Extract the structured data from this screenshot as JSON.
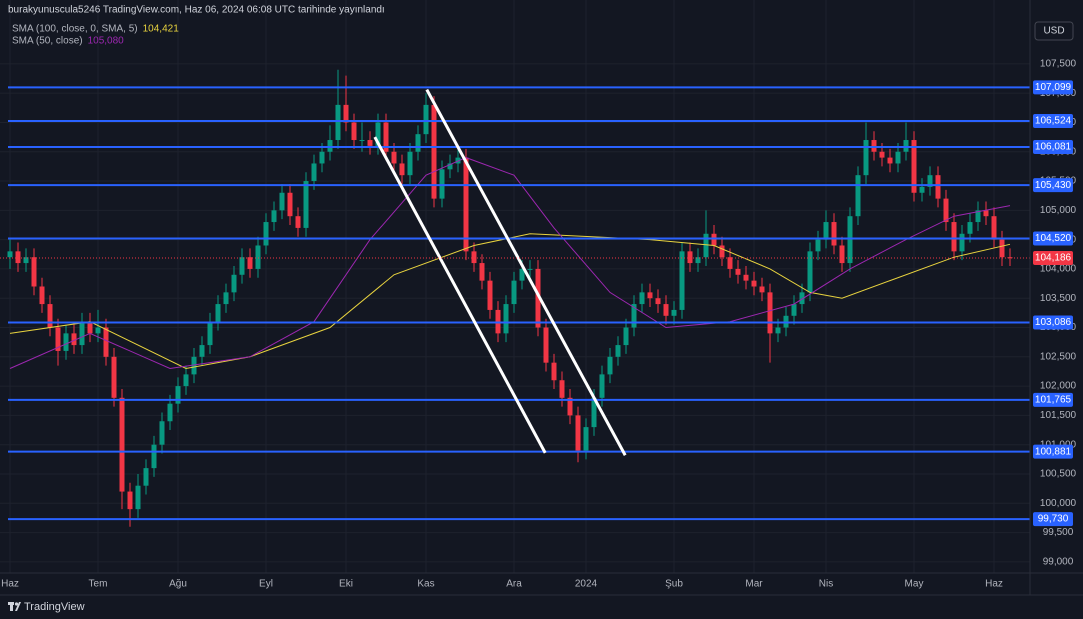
{
  "chart_data": {
    "type": "candlestick",
    "title": "burakyunuscula5246 TradingView.com, Haz 06, 2024 06:08 UTC tarihinde yayınlandı",
    "currency": "USD",
    "brand": "TradingView",
    "up_color": "#089981",
    "down_color": "#f23645",
    "grid": true,
    "ylim": [
      98.81,
      108.59
    ],
    "yticks": [
      {
        "value": 99,
        "label": "99,000"
      },
      {
        "value": 99.5,
        "label": "99,500"
      },
      {
        "value": 100,
        "label": "100,000"
      },
      {
        "value": 100.5,
        "label": "100,500"
      },
      {
        "value": 101,
        "label": "101,000"
      },
      {
        "value": 101.5,
        "label": "101,500"
      },
      {
        "value": 102,
        "label": "102,000"
      },
      {
        "value": 102.5,
        "label": "102,500"
      },
      {
        "value": 103,
        "label": "103,000"
      },
      {
        "value": 103.5,
        "label": "103,500"
      },
      {
        "value": 104,
        "label": "104,000"
      },
      {
        "value": 104.5,
        "label": "104,500"
      },
      {
        "value": 105,
        "label": "105,000"
      },
      {
        "value": 105.5,
        "label": "105,500"
      },
      {
        "value": 106,
        "label": "106,000"
      },
      {
        "value": 106.5,
        "label": "106,500"
      },
      {
        "value": 107,
        "label": "107,000"
      },
      {
        "value": 107.5,
        "label": "107,500"
      }
    ],
    "categories": [
      "Haz",
      null,
      null,
      null,
      null,
      null,
      null,
      null,
      null,
      null,
      null,
      "Tem",
      null,
      null,
      null,
      null,
      null,
      null,
      null,
      null,
      null,
      "Ağu",
      null,
      null,
      null,
      null,
      null,
      null,
      null,
      null,
      null,
      null,
      "Eyl",
      null,
      null,
      null,
      null,
      null,
      null,
      null,
      null,
      null,
      "Eki",
      null,
      null,
      null,
      null,
      null,
      null,
      null,
      null,
      null,
      "Kas",
      null,
      null,
      null,
      null,
      null,
      null,
      null,
      null,
      null,
      null,
      "Ara",
      null,
      null,
      null,
      null,
      null,
      null,
      null,
      null,
      "2024",
      null,
      null,
      null,
      null,
      null,
      null,
      null,
      null,
      null,
      null,
      "Şub",
      null,
      null,
      null,
      null,
      null,
      null,
      null,
      null,
      null,
      "Mar",
      null,
      null,
      null,
      null,
      null,
      null,
      null,
      null,
      "Nis",
      null,
      null,
      null,
      null,
      null,
      null,
      null,
      null,
      null,
      null,
      "May",
      null,
      null,
      null,
      null,
      null,
      null,
      null,
      null,
      null,
      "Haz",
      null,
      null
    ],
    "candles": [
      [
        104.2,
        104.5,
        104.0,
        104.3
      ],
      [
        104.3,
        104.45,
        103.95,
        104.1
      ],
      [
        104.1,
        104.35,
        103.95,
        104.2
      ],
      [
        104.2,
        104.35,
        103.55,
        103.7
      ],
      [
        103.7,
        103.85,
        103.25,
        103.4
      ],
      [
        103.4,
        103.55,
        102.85,
        103.0
      ],
      [
        103.0,
        103.15,
        102.35,
        102.6
      ],
      [
        102.6,
        103.05,
        102.45,
        102.9
      ],
      [
        102.9,
        103.05,
        102.55,
        102.7
      ],
      [
        102.7,
        103.25,
        102.55,
        103.1
      ],
      [
        103.1,
        103.25,
        102.75,
        102.9
      ],
      [
        102.9,
        103.3,
        102.75,
        103.0
      ],
      [
        103.0,
        103.15,
        102.35,
        102.5
      ],
      [
        102.5,
        102.65,
        101.65,
        101.8
      ],
      [
        101.8,
        101.95,
        99.9,
        100.2
      ],
      [
        100.2,
        100.35,
        99.6,
        99.9
      ],
      [
        99.9,
        100.5,
        99.75,
        100.3
      ],
      [
        100.3,
        100.75,
        100.15,
        100.6
      ],
      [
        100.6,
        101.15,
        100.45,
        101.0
      ],
      [
        101.0,
        101.55,
        100.85,
        101.4
      ],
      [
        101.4,
        101.85,
        101.25,
        101.7
      ],
      [
        101.7,
        102.15,
        101.55,
        102.0
      ],
      [
        102.0,
        102.35,
        101.85,
        102.2
      ],
      [
        102.2,
        102.65,
        102.05,
        102.5
      ],
      [
        102.5,
        102.85,
        102.35,
        102.7
      ],
      [
        102.7,
        103.25,
        102.55,
        103.1
      ],
      [
        103.1,
        103.55,
        102.95,
        103.4
      ],
      [
        103.4,
        103.75,
        103.25,
        103.6
      ],
      [
        103.6,
        104.05,
        103.45,
        103.9
      ],
      [
        103.9,
        104.35,
        103.75,
        104.2
      ],
      [
        104.2,
        104.35,
        103.85,
        104.0
      ],
      [
        104.0,
        104.55,
        103.85,
        104.4
      ],
      [
        104.4,
        104.95,
        104.25,
        104.8
      ],
      [
        104.8,
        105.15,
        104.65,
        105.0
      ],
      [
        105.0,
        105.45,
        104.85,
        105.3
      ],
      [
        105.3,
        105.45,
        104.75,
        104.9
      ],
      [
        104.9,
        105.05,
        104.55,
        104.7
      ],
      [
        104.7,
        105.65,
        104.55,
        105.5
      ],
      [
        105.5,
        105.95,
        105.35,
        105.8
      ],
      [
        105.8,
        106.15,
        105.65,
        106.0
      ],
      [
        106.0,
        106.45,
        105.85,
        106.2
      ],
      [
        106.2,
        107.4,
        106.05,
        106.8
      ],
      [
        106.8,
        107.3,
        106.35,
        106.5
      ],
      [
        106.5,
        106.65,
        106.05,
        106.2
      ],
      [
        106.2,
        106.5,
        106.0,
        106.2
      ],
      [
        106.2,
        106.35,
        105.95,
        106.1
      ],
      [
        106.1,
        106.65,
        105.95,
        106.5
      ],
      [
        106.5,
        106.65,
        105.85,
        106.0
      ],
      [
        106.0,
        106.15,
        105.65,
        105.8
      ],
      [
        105.8,
        105.95,
        105.45,
        105.6
      ],
      [
        105.6,
        106.15,
        105.45,
        106.0
      ],
      [
        106.0,
        106.45,
        105.85,
        106.3
      ],
      [
        106.3,
        107.0,
        106.15,
        106.8
      ],
      [
        106.8,
        106.95,
        105.05,
        105.2
      ],
      [
        105.2,
        105.85,
        105.05,
        105.7
      ],
      [
        105.7,
        105.95,
        105.55,
        105.8
      ],
      [
        105.8,
        106.05,
        105.65,
        105.9
      ],
      [
        105.9,
        106.05,
        104.15,
        104.3
      ],
      [
        104.3,
        104.45,
        103.95,
        104.1
      ],
      [
        104.1,
        104.25,
        103.65,
        103.8
      ],
      [
        103.8,
        103.95,
        103.15,
        103.3
      ],
      [
        103.3,
        103.45,
        102.75,
        102.9
      ],
      [
        102.9,
        103.55,
        102.75,
        103.4
      ],
      [
        103.4,
        103.95,
        103.25,
        103.8
      ],
      [
        103.8,
        104.15,
        103.65,
        104.0
      ],
      [
        104.0,
        104.15,
        103.85,
        104.0
      ],
      [
        104.0,
        104.15,
        102.85,
        103.0
      ],
      [
        103.0,
        103.15,
        102.25,
        102.4
      ],
      [
        102.4,
        102.55,
        101.95,
        102.1
      ],
      [
        102.1,
        102.25,
        101.65,
        101.8
      ],
      [
        101.8,
        101.95,
        101.35,
        101.5
      ],
      [
        101.5,
        101.65,
        100.7,
        100.9
      ],
      [
        100.9,
        101.45,
        100.75,
        101.3
      ],
      [
        101.3,
        101.95,
        101.15,
        101.8
      ],
      [
        101.8,
        102.35,
        101.65,
        102.2
      ],
      [
        102.2,
        102.65,
        102.05,
        102.5
      ],
      [
        102.5,
        102.85,
        102.35,
        102.7
      ],
      [
        102.7,
        103.15,
        102.55,
        103.0
      ],
      [
        103.0,
        103.55,
        102.85,
        103.4
      ],
      [
        103.4,
        103.75,
        103.25,
        103.6
      ],
      [
        103.6,
        103.75,
        103.35,
        103.5
      ],
      [
        103.5,
        103.65,
        103.25,
        103.4
      ],
      [
        103.4,
        103.55,
        103.05,
        103.2
      ],
      [
        103.2,
        103.45,
        103.05,
        103.3
      ],
      [
        103.3,
        104.45,
        103.15,
        104.3
      ],
      [
        104.3,
        104.45,
        103.95,
        104.1
      ],
      [
        104.1,
        104.35,
        103.95,
        104.2
      ],
      [
        104.2,
        105.0,
        104.05,
        104.6
      ],
      [
        104.6,
        104.75,
        104.25,
        104.4
      ],
      [
        104.4,
        104.55,
        104.05,
        104.2
      ],
      [
        104.2,
        104.35,
        103.85,
        104.0
      ],
      [
        104.0,
        104.15,
        103.75,
        103.9
      ],
      [
        103.9,
        104.05,
        103.65,
        103.8
      ],
      [
        103.8,
        103.95,
        103.55,
        103.7
      ],
      [
        103.7,
        103.85,
        103.45,
        103.6
      ],
      [
        103.6,
        103.75,
        102.4,
        102.9
      ],
      [
        102.9,
        103.15,
        102.75,
        103.0
      ],
      [
        103.0,
        103.35,
        102.85,
        103.2
      ],
      [
        103.2,
        103.55,
        103.05,
        103.4
      ],
      [
        103.4,
        103.75,
        103.25,
        103.6
      ],
      [
        103.6,
        104.45,
        103.45,
        104.3
      ],
      [
        104.3,
        104.65,
        104.15,
        104.5
      ],
      [
        104.5,
        105.0,
        104.35,
        104.8
      ],
      [
        104.8,
        104.95,
        104.25,
        104.4
      ],
      [
        104.4,
        104.55,
        103.95,
        104.1
      ],
      [
        104.1,
        105.05,
        103.95,
        104.9
      ],
      [
        104.9,
        105.75,
        104.75,
        105.6
      ],
      [
        105.6,
        106.5,
        105.45,
        106.2
      ],
      [
        106.2,
        106.35,
        105.85,
        106.0
      ],
      [
        106.0,
        106.15,
        105.75,
        105.9
      ],
      [
        105.9,
        106.05,
        105.65,
        105.8
      ],
      [
        105.8,
        106.15,
        105.65,
        106.0
      ],
      [
        106.0,
        106.5,
        105.85,
        106.2
      ],
      [
        106.2,
        106.35,
        105.15,
        105.3
      ],
      [
        105.3,
        105.55,
        105.15,
        105.4
      ],
      [
        105.4,
        105.75,
        105.25,
        105.6
      ],
      [
        105.6,
        105.75,
        105.05,
        105.2
      ],
      [
        105.2,
        105.35,
        104.65,
        104.8
      ],
      [
        104.8,
        104.95,
        104.15,
        104.3
      ],
      [
        104.3,
        104.75,
        104.15,
        104.6
      ],
      [
        104.6,
        104.95,
        104.45,
        104.8
      ],
      [
        104.8,
        105.15,
        104.65,
        105.0
      ],
      [
        105.0,
        105.15,
        104.75,
        104.9
      ],
      [
        104.9,
        105.05,
        104.35,
        104.5
      ],
      [
        104.5,
        104.65,
        104.05,
        104.2
      ],
      [
        104.2,
        104.35,
        104.05,
        104.19
      ]
    ],
    "indicators": [
      {
        "name": "SMA (100, close, 0, SMA, 5)",
        "value_label": "104,421",
        "color": "#e8d33f",
        "x": [
          0,
          10,
          22,
          30,
          40,
          48,
          58,
          65,
          80,
          88,
          95,
          100,
          104,
          110,
          118,
          125
        ],
        "values": [
          102.9,
          103.1,
          102.3,
          102.5,
          103.0,
          103.9,
          104.4,
          104.6,
          104.5,
          104.4,
          104.0,
          103.6,
          103.5,
          103.8,
          104.2,
          104.421
        ]
      },
      {
        "name": "SMA (50, close)",
        "value_label": "105,080",
        "color": "#9c27b0",
        "x": [
          0,
          10,
          20,
          30,
          38,
          45,
          52,
          57,
          63,
          68,
          75,
          82,
          90,
          98,
          105,
          112,
          118,
          125
        ],
        "values": [
          102.3,
          102.9,
          102.3,
          102.5,
          103.1,
          104.5,
          105.6,
          105.9,
          105.6,
          104.7,
          103.6,
          103.0,
          103.1,
          103.4,
          104.0,
          104.5,
          104.9,
          105.08
        ]
      }
    ],
    "levels_color": "#2962ff",
    "levels": [
      {
        "value": 107.099,
        "label": "107,099"
      },
      {
        "value": 106.524,
        "label": "106,524"
      },
      {
        "value": 106.081,
        "label": "106,081"
      },
      {
        "value": 105.43,
        "label": "105,430"
      },
      {
        "value": 104.52,
        "label": "104,520"
      },
      {
        "value": 103.086,
        "label": "103,086"
      },
      {
        "value": 101.765,
        "label": "101,765"
      },
      {
        "value": 100.881,
        "label": "100,881"
      },
      {
        "value": 99.73,
        "label": "99,730"
      }
    ],
    "last_price": {
      "value": 104.186,
      "label": "104,186",
      "color": "#f23645"
    },
    "trendlines_color": "#ffffff",
    "trendlines": [
      {
        "x": [
          45.6,
          66.9
        ],
        "values": [
          106.25,
          100.86
        ]
      },
      {
        "x": [
          52.1,
          76.9
        ],
        "values": [
          107.06,
          100.82
        ]
      }
    ]
  }
}
